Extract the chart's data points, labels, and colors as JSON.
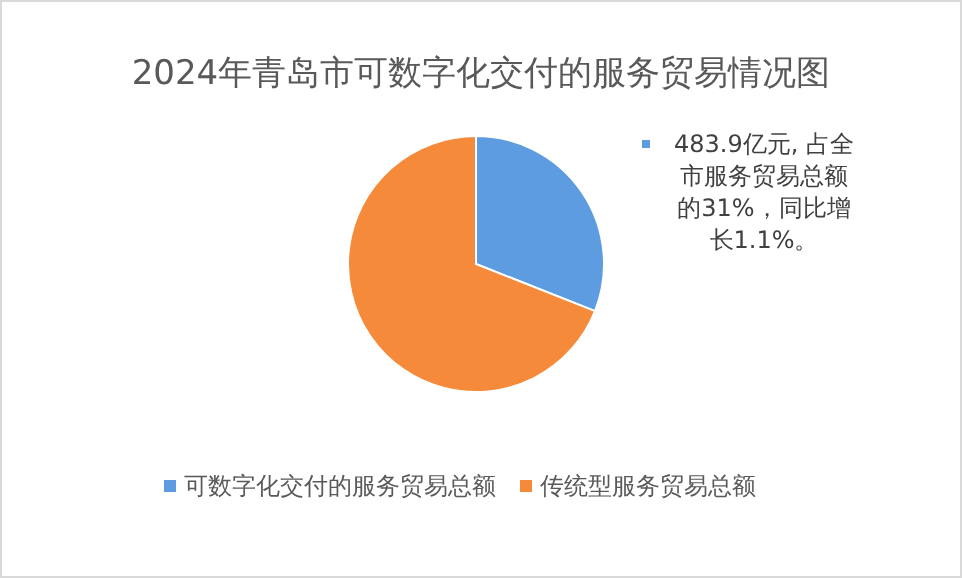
{
  "chart_data": {
    "type": "pie",
    "title": "2024年青岛市可数字化交付的服务贸易情况图",
    "categories": [
      "可数字化交付的服务贸易总额",
      "传统型服务贸易总额"
    ],
    "values": [
      31,
      69
    ],
    "colors": [
      "#5d9ce0",
      "#f58a3a"
    ],
    "value_labels": [
      "483.9亿元, 占全市服务贸易总额的31%，同比增长1.1%。",
      null
    ],
    "legend": "bottom"
  }
}
